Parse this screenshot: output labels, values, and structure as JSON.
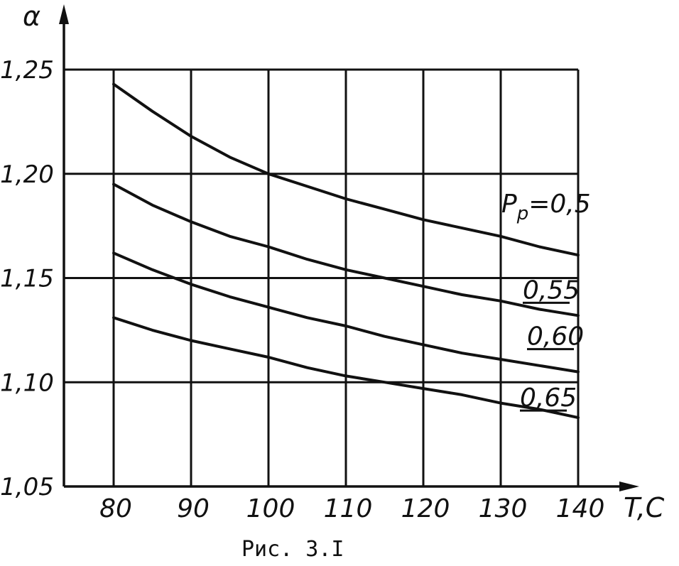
{
  "chart_data": {
    "type": "line",
    "ylabel": "α",
    "xlabel": "T,C",
    "caption": "Рис. 3.I",
    "xlim": [
      80,
      140
    ],
    "ylim": [
      1.05,
      1.25
    ],
    "x_ticks": [
      "80",
      "90",
      "100",
      "110",
      "120",
      "130",
      "140"
    ],
    "y_ticks": [
      "1,05",
      "1,10",
      "1,15",
      "1,20",
      "1,25"
    ],
    "grid": true,
    "series": [
      {
        "name": "Pp=0,5",
        "label_main": "P",
        "label_sub": "p",
        "label_rest": "=0,5",
        "x": [
          80,
          85,
          90,
          95,
          100,
          105,
          110,
          115,
          120,
          125,
          130,
          135,
          140
        ],
        "y": [
          1.243,
          1.23,
          1.218,
          1.208,
          1.2,
          1.194,
          1.188,
          1.183,
          1.178,
          1.174,
          1.17,
          1.165,
          1.161
        ]
      },
      {
        "name": "0,55",
        "label_main": "0,55",
        "x": [
          80,
          85,
          90,
          95,
          100,
          105,
          110,
          115,
          120,
          125,
          130,
          135,
          140
        ],
        "y": [
          1.195,
          1.185,
          1.177,
          1.17,
          1.165,
          1.159,
          1.154,
          1.15,
          1.146,
          1.142,
          1.139,
          1.135,
          1.132
        ]
      },
      {
        "name": "0,60",
        "label_main": "0,60",
        "x": [
          80,
          85,
          90,
          95,
          100,
          105,
          110,
          115,
          120,
          125,
          130,
          135,
          140
        ],
        "y": [
          1.162,
          1.154,
          1.147,
          1.141,
          1.136,
          1.131,
          1.127,
          1.122,
          1.118,
          1.114,
          1.111,
          1.108,
          1.105
        ]
      },
      {
        "name": "0,65",
        "label_main": "0,65",
        "x": [
          80,
          85,
          90,
          95,
          100,
          105,
          110,
          115,
          120,
          125,
          130,
          135,
          140
        ],
        "y": [
          1.131,
          1.125,
          1.12,
          1.116,
          1.112,
          1.107,
          1.103,
          1.1,
          1.097,
          1.094,
          1.09,
          1.087,
          1.083
        ]
      }
    ]
  }
}
